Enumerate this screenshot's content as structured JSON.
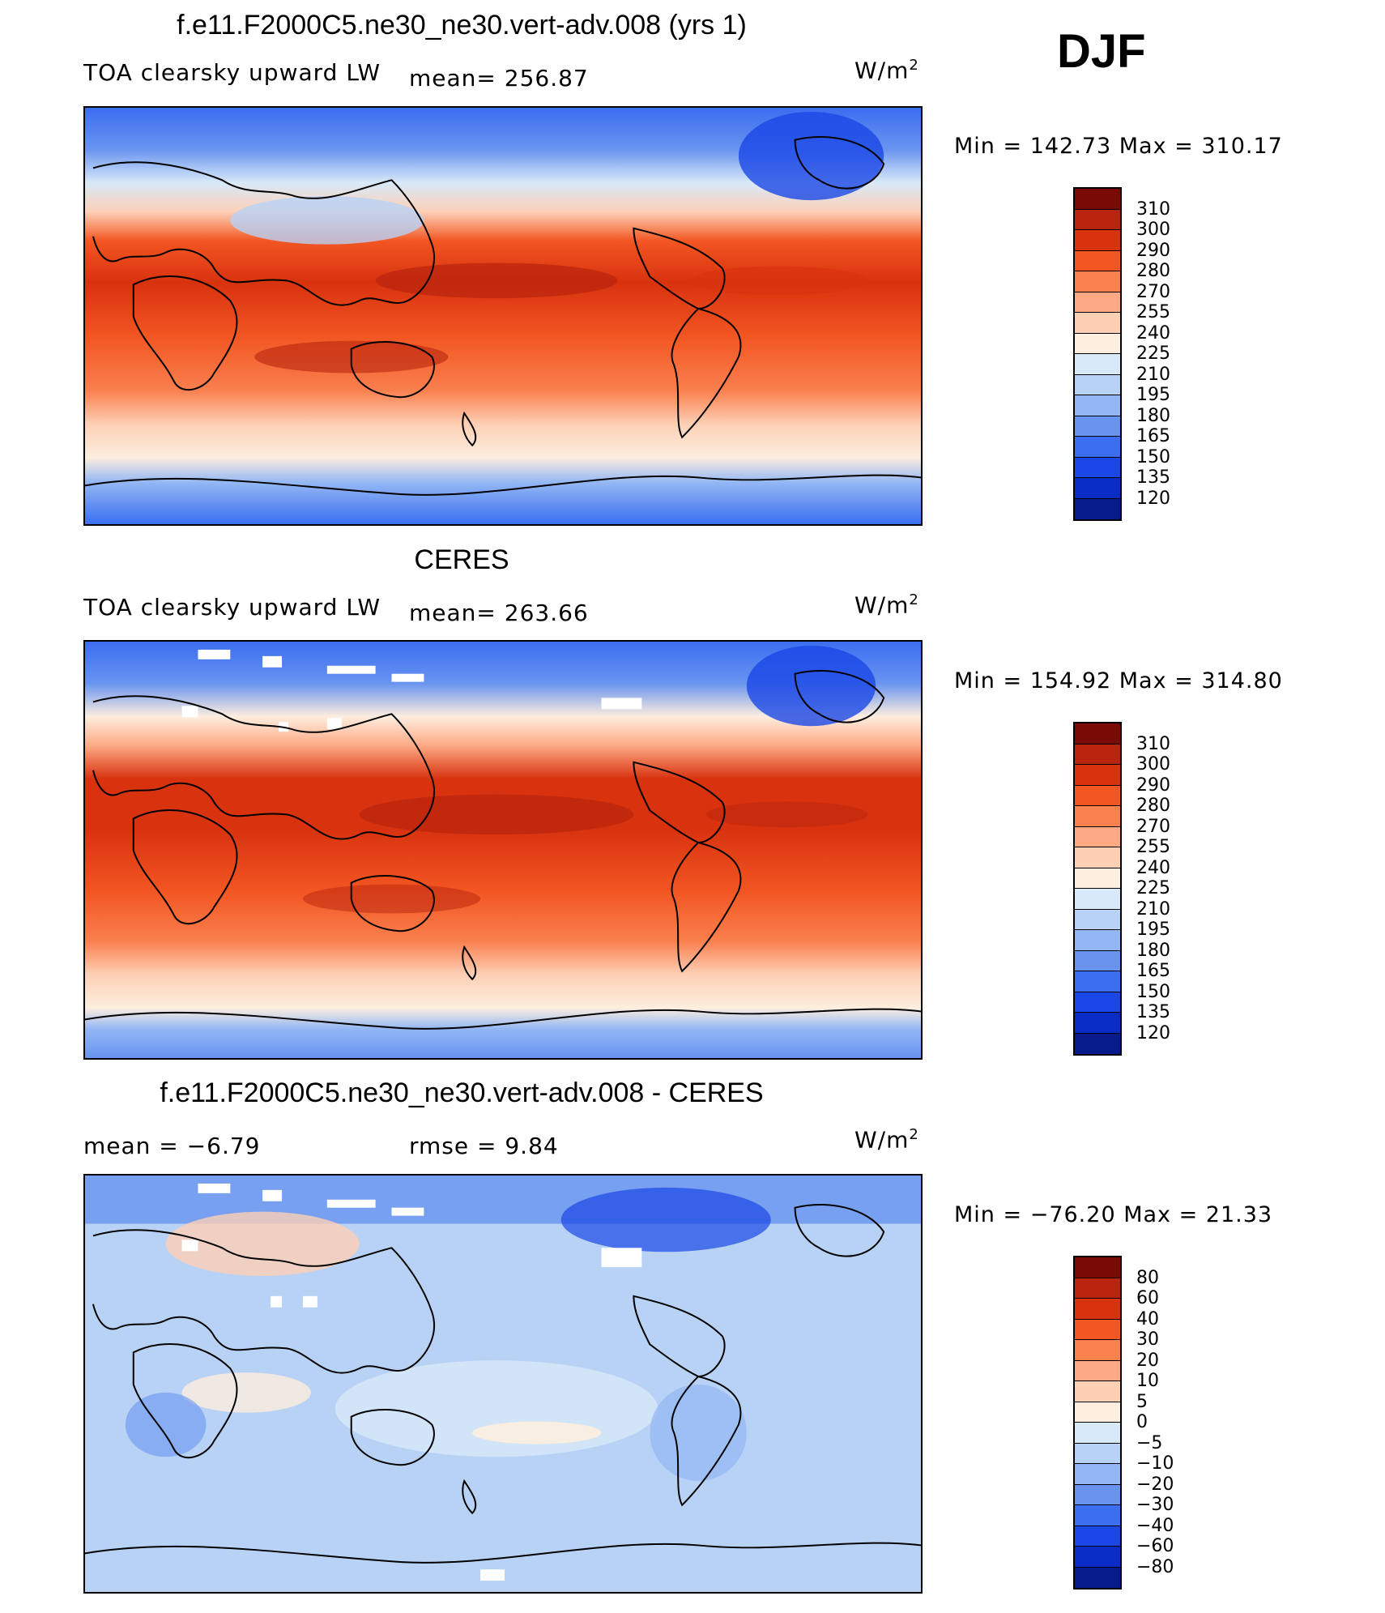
{
  "season": "DJF",
  "panels": [
    {
      "title": "f.e11.F2000C5.ne30_ne30.vert-adv.008 (yrs 1)",
      "variable": "TOA clearsky upward LW",
      "stat1": "mean= 256.87",
      "stat2": "",
      "unit_base": "W/m",
      "unit_exp": "2",
      "minmax": "Min = 142.73 Max = 310.17",
      "colorbar_ticks": [
        "310",
        "300",
        "290",
        "280",
        "270",
        "255",
        "240",
        "225",
        "210",
        "195",
        "180",
        "165",
        "150",
        "135",
        "120"
      ]
    },
    {
      "title": "CERES",
      "variable": "TOA clearsky upward LW",
      "stat1": "mean= 263.66",
      "stat2": "",
      "unit_base": "W/m",
      "unit_exp": "2",
      "minmax": "Min = 154.92 Max = 314.80",
      "colorbar_ticks": [
        "310",
        "300",
        "290",
        "280",
        "270",
        "255",
        "240",
        "225",
        "210",
        "195",
        "180",
        "165",
        "150",
        "135",
        "120"
      ]
    },
    {
      "title": "f.e11.F2000C5.ne30_ne30.vert-adv.008 - CERES",
      "variable": "",
      "stat1": "mean =   −6.79",
      "stat2": "rmse =    9.84",
      "unit_base": "W/m",
      "unit_exp": "2",
      "minmax": "Min = −76.20 Max =  21.33",
      "colorbar_ticks": [
        "80",
        "60",
        "40",
        "30",
        "20",
        "10",
        "5",
        "0",
        "−5",
        "−10",
        "−20",
        "−30",
        "−40",
        "−60",
        "−80"
      ]
    }
  ],
  "colors": {
    "field_scale": [
      "#7a0a06",
      "#b8240e",
      "#d8320f",
      "#f25622",
      "#f9804f",
      "#fda983",
      "#fdd0b6",
      "#fdeedf",
      "#d8e9f9",
      "#b8d2f6",
      "#93b7f4",
      "#6894f0",
      "#3b6ef0",
      "#1a47e6",
      "#0a2cc6",
      "#061a8c"
    ],
    "diff_scale": [
      "#7a0a06",
      "#b8240e",
      "#d8320f",
      "#f25622",
      "#f9804f",
      "#fda983",
      "#fdd0b6",
      "#fdeedf",
      "#d8e9f9",
      "#b8d2f6",
      "#93b7f4",
      "#6894f0",
      "#3b6ef0",
      "#1a47e6",
      "#0a2cc6",
      "#061a8c"
    ]
  }
}
